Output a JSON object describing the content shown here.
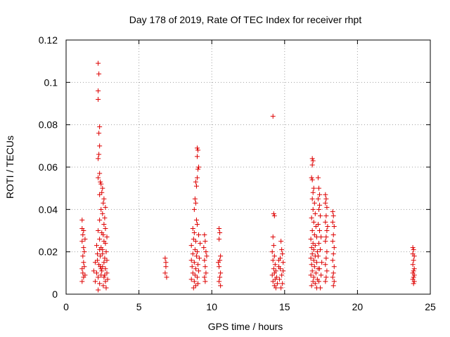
{
  "chart_data": {
    "type": "scatter",
    "title": "Day 178 of 2019, Rate Of TEC Index for receiver rhpt",
    "xlabel": "GPS time / hours",
    "ylabel": "ROTI / TECUs",
    "xlim": [
      0,
      25
    ],
    "ylim": [
      0,
      0.12
    ],
    "xticks": [
      0,
      5,
      10,
      15,
      20,
      25
    ],
    "xtick_labels": [
      "0",
      "5",
      "10",
      "15",
      "20",
      "25"
    ],
    "yticks": [
      0,
      0.02,
      0.04,
      0.06,
      0.08,
      0.1,
      0.12
    ],
    "ytick_labels": [
      "0",
      "0.02",
      "0.04",
      "0.06",
      "0.08",
      "0.1",
      "0.12"
    ],
    "grid": true,
    "marker": "+",
    "marker_color": "#dd0000",
    "series": [
      {
        "name": "ROTI",
        "points": [
          [
            1.1,
            0.035
          ],
          [
            1.1,
            0.031
          ],
          [
            1.15,
            0.028
          ],
          [
            1.1,
            0.025
          ],
          [
            1.2,
            0.022
          ],
          [
            1.15,
            0.018
          ],
          [
            1.2,
            0.015
          ],
          [
            1.1,
            0.012
          ],
          [
            1.15,
            0.01
          ],
          [
            1.2,
            0.008
          ],
          [
            1.1,
            0.006
          ],
          [
            1.25,
            0.02
          ],
          [
            1.3,
            0.026
          ],
          [
            1.25,
            0.013
          ],
          [
            1.3,
            0.009
          ],
          [
            1.2,
            0.03
          ],
          [
            2.2,
            0.109
          ],
          [
            2.25,
            0.104
          ],
          [
            2.2,
            0.096
          ],
          [
            2.2,
            0.092
          ],
          [
            2.3,
            0.079
          ],
          [
            2.25,
            0.076
          ],
          [
            2.3,
            0.07
          ],
          [
            2.25,
            0.066
          ],
          [
            2.2,
            0.064
          ],
          [
            2.3,
            0.057
          ],
          [
            2.2,
            0.055
          ],
          [
            2.35,
            0.053
          ],
          [
            2.4,
            0.052
          ],
          [
            2.5,
            0.05
          ],
          [
            2.45,
            0.048
          ],
          [
            2.3,
            0.047
          ],
          [
            2.6,
            0.045
          ],
          [
            2.55,
            0.043
          ],
          [
            2.7,
            0.041
          ],
          [
            2.4,
            0.04
          ],
          [
            2.5,
            0.038
          ],
          [
            2.65,
            0.036
          ],
          [
            2.3,
            0.035
          ],
          [
            2.6,
            0.033
          ],
          [
            2.7,
            0.031
          ],
          [
            2.2,
            0.03
          ],
          [
            2.45,
            0.029
          ],
          [
            2.55,
            0.028
          ],
          [
            2.8,
            0.027
          ],
          [
            2.3,
            0.026
          ],
          [
            2.6,
            0.025
          ],
          [
            2.7,
            0.024
          ],
          [
            2.1,
            0.023
          ],
          [
            2.4,
            0.022
          ],
          [
            2.5,
            0.021
          ],
          [
            2.75,
            0.02
          ],
          [
            2.15,
            0.019
          ],
          [
            2.35,
            0.018
          ],
          [
            2.65,
            0.017
          ],
          [
            2.8,
            0.016
          ],
          [
            2.0,
            0.015
          ],
          [
            2.25,
            0.014
          ],
          [
            2.5,
            0.013
          ],
          [
            2.7,
            0.012
          ],
          [
            1.9,
            0.011
          ],
          [
            2.1,
            0.01
          ],
          [
            2.4,
            0.009
          ],
          [
            2.6,
            0.008
          ],
          [
            2.85,
            0.007
          ],
          [
            2.0,
            0.006
          ],
          [
            2.3,
            0.005
          ],
          [
            2.55,
            0.004
          ],
          [
            2.75,
            0.003
          ],
          [
            2.2,
            0.002
          ],
          [
            2.45,
            0.011
          ],
          [
            2.65,
            0.009
          ],
          [
            2.35,
            0.013
          ],
          [
            2.15,
            0.016
          ],
          [
            2.5,
            0.019
          ],
          [
            2.3,
            0.021
          ],
          [
            2.6,
            0.015
          ],
          [
            2.4,
            0.012
          ],
          [
            2.2,
            0.008
          ],
          [
            2.7,
            0.006
          ],
          [
            2.8,
            0.01
          ],
          [
            6.8,
            0.017
          ],
          [
            6.85,
            0.013
          ],
          [
            6.8,
            0.01
          ],
          [
            6.9,
            0.008
          ],
          [
            6.85,
            0.015
          ],
          [
            9.0,
            0.069
          ],
          [
            9.05,
            0.068
          ],
          [
            9.0,
            0.065
          ],
          [
            9.1,
            0.06
          ],
          [
            9.05,
            0.059
          ],
          [
            9.0,
            0.055
          ],
          [
            8.9,
            0.053
          ],
          [
            8.95,
            0.051
          ],
          [
            8.85,
            0.045
          ],
          [
            8.9,
            0.043
          ],
          [
            8.8,
            0.04
          ],
          [
            8.95,
            0.035
          ],
          [
            9.0,
            0.033
          ],
          [
            8.7,
            0.031
          ],
          [
            8.8,
            0.029
          ],
          [
            9.1,
            0.028
          ],
          [
            8.75,
            0.026
          ],
          [
            8.9,
            0.025
          ],
          [
            9.2,
            0.024
          ],
          [
            8.6,
            0.023
          ],
          [
            8.85,
            0.021
          ],
          [
            9.0,
            0.02
          ],
          [
            8.7,
            0.019
          ],
          [
            8.95,
            0.018
          ],
          [
            9.15,
            0.017
          ],
          [
            8.6,
            0.016
          ],
          [
            8.8,
            0.015
          ],
          [
            9.05,
            0.014
          ],
          [
            8.65,
            0.013
          ],
          [
            8.9,
            0.012
          ],
          [
            9.1,
            0.011
          ],
          [
            8.7,
            0.01
          ],
          [
            8.85,
            0.009
          ],
          [
            9.0,
            0.008
          ],
          [
            8.6,
            0.007
          ],
          [
            8.8,
            0.006
          ],
          [
            9.05,
            0.005
          ],
          [
            8.9,
            0.004
          ],
          [
            8.75,
            0.003
          ],
          [
            9.5,
            0.028
          ],
          [
            9.55,
            0.025
          ],
          [
            9.6,
            0.02
          ],
          [
            9.5,
            0.016
          ],
          [
            9.55,
            0.013
          ],
          [
            9.6,
            0.01
          ],
          [
            9.5,
            0.008
          ],
          [
            9.55,
            0.006
          ],
          [
            9.45,
            0.022
          ],
          [
            9.65,
            0.018
          ],
          [
            10.5,
            0.031
          ],
          [
            10.55,
            0.029
          ],
          [
            10.5,
            0.026
          ],
          [
            10.6,
            0.018
          ],
          [
            10.55,
            0.016
          ],
          [
            10.5,
            0.013
          ],
          [
            10.6,
            0.01
          ],
          [
            10.55,
            0.008
          ],
          [
            10.5,
            0.006
          ],
          [
            10.6,
            0.004
          ],
          [
            10.45,
            0.015
          ],
          [
            14.2,
            0.084
          ],
          [
            14.25,
            0.038
          ],
          [
            14.3,
            0.037
          ],
          [
            14.2,
            0.027
          ],
          [
            14.25,
            0.023
          ],
          [
            14.15,
            0.02
          ],
          [
            14.3,
            0.018
          ],
          [
            14.2,
            0.016
          ],
          [
            14.35,
            0.014
          ],
          [
            14.25,
            0.012
          ],
          [
            14.4,
            0.011
          ],
          [
            14.3,
            0.01
          ],
          [
            14.15,
            0.009
          ],
          [
            14.45,
            0.008
          ],
          [
            14.35,
            0.007
          ],
          [
            14.2,
            0.006
          ],
          [
            14.5,
            0.005
          ],
          [
            14.3,
            0.004
          ],
          [
            14.4,
            0.003
          ],
          [
            14.6,
            0.013
          ],
          [
            14.7,
            0.017
          ],
          [
            14.8,
            0.021
          ],
          [
            14.75,
            0.025
          ],
          [
            14.85,
            0.019
          ],
          [
            14.9,
            0.015
          ],
          [
            14.7,
            0.012
          ],
          [
            14.8,
            0.009
          ],
          [
            14.65,
            0.007
          ],
          [
            14.85,
            0.005
          ],
          [
            14.75,
            0.003
          ],
          [
            14.9,
            0.011
          ],
          [
            14.6,
            0.016
          ],
          [
            16.9,
            0.064
          ],
          [
            16.95,
            0.063
          ],
          [
            16.9,
            0.061
          ],
          [
            16.85,
            0.055
          ],
          [
            16.9,
            0.054
          ],
          [
            17.0,
            0.05
          ],
          [
            16.95,
            0.048
          ],
          [
            16.9,
            0.045
          ],
          [
            17.05,
            0.043
          ],
          [
            16.95,
            0.04
          ],
          [
            17.1,
            0.038
          ],
          [
            16.85,
            0.036
          ],
          [
            17.0,
            0.034
          ],
          [
            17.15,
            0.032
          ],
          [
            16.9,
            0.03
          ],
          [
            17.05,
            0.028
          ],
          [
            17.2,
            0.027
          ],
          [
            16.8,
            0.026
          ],
          [
            16.95,
            0.024
          ],
          [
            17.1,
            0.023
          ],
          [
            16.85,
            0.022
          ],
          [
            17.0,
            0.021
          ],
          [
            17.25,
            0.02
          ],
          [
            16.9,
            0.019
          ],
          [
            17.1,
            0.018
          ],
          [
            16.8,
            0.017
          ],
          [
            17.0,
            0.016
          ],
          [
            17.2,
            0.015
          ],
          [
            16.85,
            0.014
          ],
          [
            17.05,
            0.013
          ],
          [
            17.3,
            0.012
          ],
          [
            16.9,
            0.011
          ],
          [
            17.15,
            0.01
          ],
          [
            16.8,
            0.009
          ],
          [
            17.0,
            0.008
          ],
          [
            17.25,
            0.007
          ],
          [
            16.95,
            0.006
          ],
          [
            17.1,
            0.005
          ],
          [
            16.85,
            0.004
          ],
          [
            17.2,
            0.003
          ],
          [
            17.3,
            0.055
          ],
          [
            17.35,
            0.05
          ],
          [
            17.4,
            0.047
          ],
          [
            17.3,
            0.045
          ],
          [
            17.4,
            0.042
          ],
          [
            17.35,
            0.04
          ],
          [
            17.45,
            0.037
          ],
          [
            17.3,
            0.033
          ],
          [
            17.4,
            0.03
          ],
          [
            17.5,
            0.027
          ],
          [
            17.35,
            0.024
          ],
          [
            17.45,
            0.021
          ],
          [
            17.3,
            0.018
          ],
          [
            17.55,
            0.015
          ],
          [
            17.4,
            0.012
          ],
          [
            17.5,
            0.009
          ],
          [
            17.35,
            0.006
          ],
          [
            17.45,
            0.003
          ],
          [
            17.8,
            0.047
          ],
          [
            17.85,
            0.045
          ],
          [
            17.8,
            0.043
          ],
          [
            17.9,
            0.041
          ],
          [
            17.85,
            0.037
          ],
          [
            17.8,
            0.034
          ],
          [
            17.9,
            0.03
          ],
          [
            17.85,
            0.027
          ],
          [
            17.8,
            0.025
          ],
          [
            17.9,
            0.02
          ],
          [
            17.85,
            0.017
          ],
          [
            17.8,
            0.014
          ],
          [
            17.9,
            0.011
          ],
          [
            17.85,
            0.008
          ],
          [
            17.8,
            0.006
          ],
          [
            17.95,
            0.032
          ],
          [
            18.3,
            0.039
          ],
          [
            18.35,
            0.037
          ],
          [
            18.3,
            0.034
          ],
          [
            18.4,
            0.032
          ],
          [
            18.35,
            0.028
          ],
          [
            18.3,
            0.025
          ],
          [
            18.4,
            0.022
          ],
          [
            18.35,
            0.019
          ],
          [
            18.3,
            0.016
          ],
          [
            18.4,
            0.013
          ],
          [
            18.35,
            0.01
          ],
          [
            18.3,
            0.008
          ],
          [
            18.4,
            0.006
          ],
          [
            18.35,
            0.004
          ],
          [
            23.8,
            0.022
          ],
          [
            23.85,
            0.021
          ],
          [
            23.8,
            0.019
          ],
          [
            23.9,
            0.018
          ],
          [
            23.85,
            0.016
          ],
          [
            23.8,
            0.014
          ],
          [
            23.9,
            0.012
          ],
          [
            23.85,
            0.011
          ],
          [
            23.8,
            0.01
          ],
          [
            23.9,
            0.009
          ],
          [
            23.85,
            0.008
          ],
          [
            23.8,
            0.007
          ],
          [
            23.9,
            0.006
          ],
          [
            23.85,
            0.005
          ]
        ]
      }
    ]
  }
}
